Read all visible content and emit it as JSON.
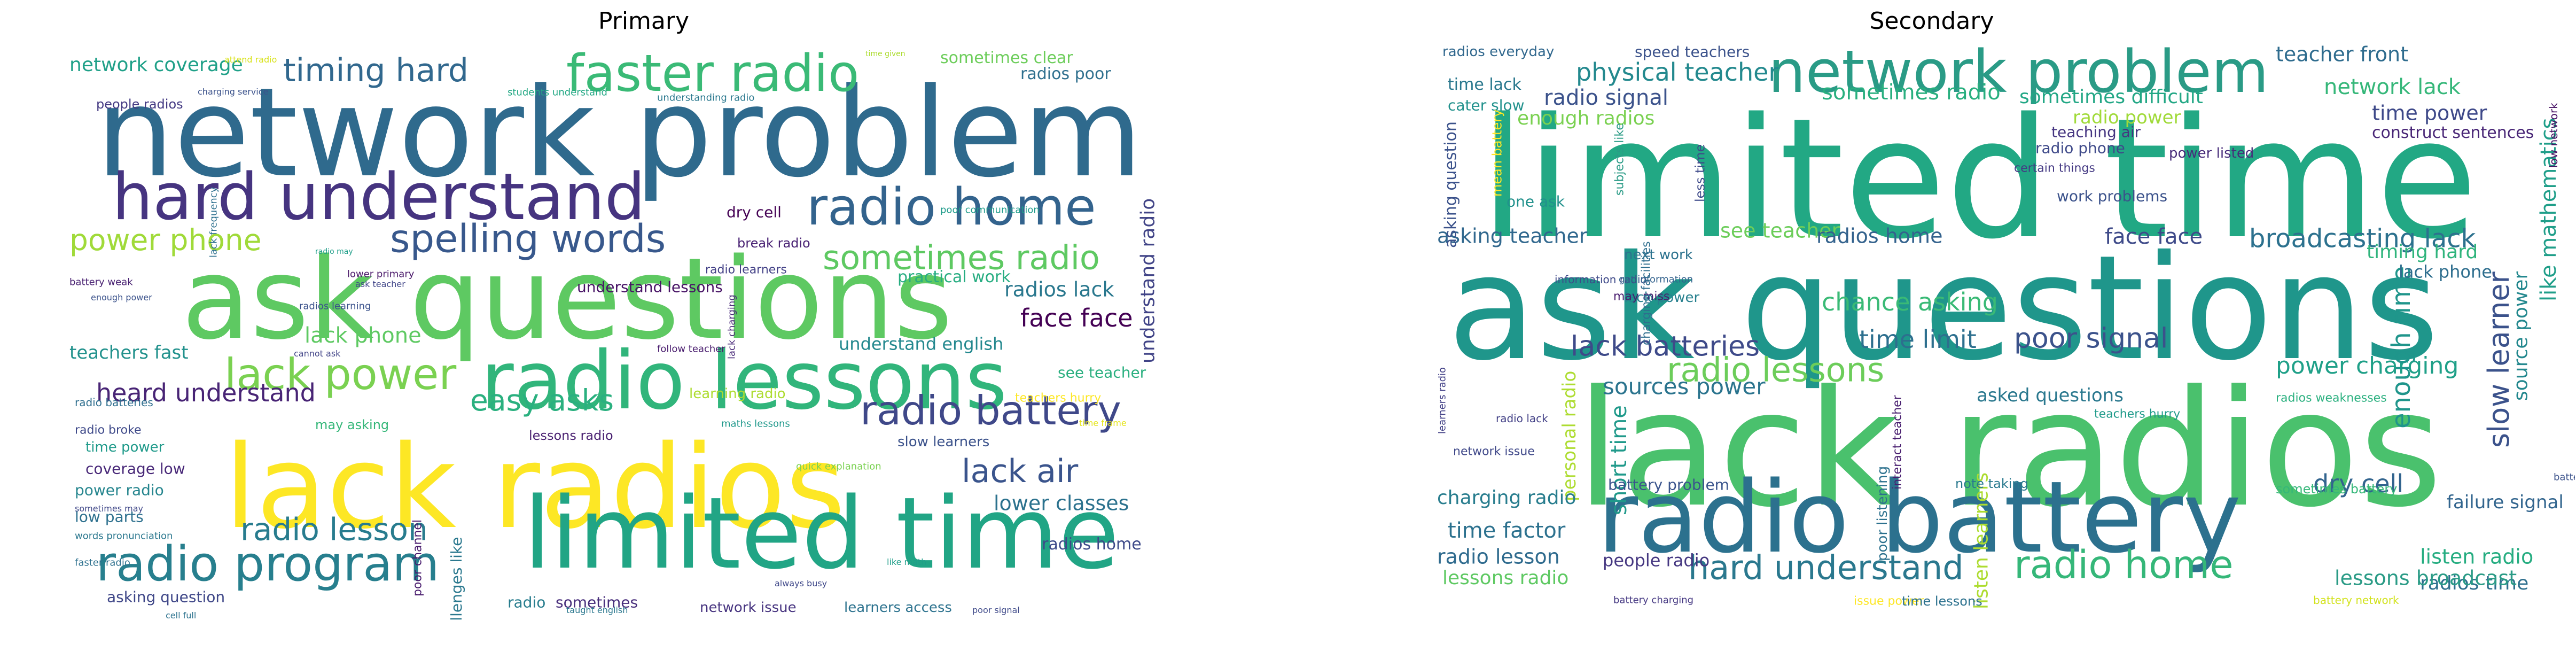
{
  "panels": [
    {
      "title": "Primary",
      "words": [
        {
          "text": "network problem",
          "color": "#2f6a8d"
        },
        {
          "text": "ask questions",
          "color": "#5ec962"
        },
        {
          "text": "lack radios",
          "color": "#fde725"
        },
        {
          "text": "limited time",
          "color": "#21a585"
        },
        {
          "text": "hard understand",
          "color": "#463480"
        },
        {
          "text": "radio lessons",
          "color": "#31b57b"
        },
        {
          "text": "radio program",
          "color": "#277f8e"
        },
        {
          "text": "faster radio",
          "color": "#3aba76"
        },
        {
          "text": "radio home",
          "color": "#33638d"
        },
        {
          "text": "radio battery",
          "color": "#3f4889"
        },
        {
          "text": "spelling words",
          "color": "#38588c"
        },
        {
          "text": "lack power",
          "color": "#7ad151"
        },
        {
          "text": "sometimes radio",
          "color": "#5ec962"
        },
        {
          "text": "timing hard",
          "color": "#31688e"
        },
        {
          "text": "power phone",
          "color": "#a0da39"
        },
        {
          "text": "easy asks",
          "color": "#2ab07f"
        },
        {
          "text": "lack air",
          "color": "#3a548c"
        },
        {
          "text": "radio lesson",
          "color": "#287c8e"
        },
        {
          "text": "heard understand",
          "color": "#482475"
        },
        {
          "text": "lack phone",
          "color": "#5ec962"
        },
        {
          "text": "face face",
          "color": "#440154"
        },
        {
          "text": "lower classes",
          "color": "#2c728e"
        },
        {
          "text": "radios lack",
          "color": "#2a788e"
        },
        {
          "text": "understand radio",
          "color": "#414487"
        },
        {
          "text": "network coverage",
          "color": "#1fa088"
        },
        {
          "text": "sometimes clear",
          "color": "#6ccd5a"
        },
        {
          "text": "radios poor",
          "color": "#2e6f8e"
        },
        {
          "text": "teachers fast",
          "color": "#21918c"
        },
        {
          "text": "radios home",
          "color": "#3e4a89"
        },
        {
          "text": "coverage low",
          "color": "#482878"
        },
        {
          "text": "power radio",
          "color": "#25858e"
        },
        {
          "text": "low parts",
          "color": "#2d708e"
        },
        {
          "text": "time power",
          "color": "#1f9a8a"
        },
        {
          "text": "understand english",
          "color": "#23888e"
        },
        {
          "text": "practical work",
          "color": "#27ad81"
        },
        {
          "text": "understand lessons",
          "color": "#471365"
        },
        {
          "text": "break radio",
          "color": "#482173"
        },
        {
          "text": "learning radio",
          "color": "#addc30"
        },
        {
          "text": "may asking",
          "color": "#35b779"
        },
        {
          "text": "see teacher",
          "color": "#29af7f"
        },
        {
          "text": "slow learners",
          "color": "#3b528b"
        },
        {
          "text": "lessons radio",
          "color": "#481f70"
        },
        {
          "text": "people radios",
          "color": "#443a83"
        },
        {
          "text": "asking question",
          "color": "#3f4788"
        },
        {
          "text": "network issue",
          "color": "#46337f"
        },
        {
          "text": "learners access",
          "color": "#2c728e"
        },
        {
          "text": "radio",
          "color": "#287d8e"
        },
        {
          "text": "sometimes",
          "color": "#472d7b"
        },
        {
          "text": "dry cell",
          "color": "#440154"
        },
        {
          "text": "radio learners",
          "color": "#424086"
        },
        {
          "text": "radios learning",
          "color": "#3b528b"
        },
        {
          "text": "lesson hard",
          "color": "#5ec962"
        },
        {
          "text": "challenges like",
          "color": "#2a788e"
        },
        {
          "text": "poor channel",
          "color": "#481b6d"
        },
        {
          "text": "radio broke",
          "color": "#3e4989"
        },
        {
          "text": "radio batteries",
          "color": "#2e6e8e"
        },
        {
          "text": "battery weak",
          "color": "#482071"
        },
        {
          "text": "enough power",
          "color": "#3b528b"
        },
        {
          "text": "follow teacher",
          "color": "#481b6d"
        },
        {
          "text": "cannot ask",
          "color": "#414487"
        },
        {
          "text": "maths lessons",
          "color": "#1f988b"
        },
        {
          "text": "lack charging",
          "color": "#482878"
        },
        {
          "text": "quick explanation",
          "color": "#7ad151"
        },
        {
          "text": "poor communication",
          "color": "#1e9b8a"
        },
        {
          "text": "understanding radio",
          "color": "#2a788e"
        },
        {
          "text": "lower primary",
          "color": "#481668"
        },
        {
          "text": "ask teacher",
          "color": "#404588"
        },
        {
          "text": "radio may",
          "color": "#1f9e89"
        },
        {
          "text": "lack frequency",
          "color": "#2d708e"
        },
        {
          "text": "charging service",
          "color": "#3b528b"
        },
        {
          "text": "attend radio",
          "color": "#d8e219"
        },
        {
          "text": "time given",
          "color": "#addc30"
        },
        {
          "text": "students understand",
          "color": "#22a884"
        },
        {
          "text": "teachers hurry",
          "color": "#fde725"
        },
        {
          "text": "time frame",
          "color": "#e5e419"
        },
        {
          "text": "always busy",
          "color": "#3f4889"
        },
        {
          "text": "like math",
          "color": "#1f9e89"
        },
        {
          "text": "taught english",
          "color": "#2a778e"
        },
        {
          "text": "poor signal",
          "color": "#3e4989"
        },
        {
          "text": "cell full",
          "color": "#2c728e"
        },
        {
          "text": "words pronunciation",
          "color": "#2a778e"
        },
        {
          "text": "faster radio",
          "color": "#2d708e"
        },
        {
          "text": "sometimes may",
          "color": "#3f4788"
        }
      ]
    },
    {
      "title": "Secondary",
      "words": [
        {
          "text": "limited time",
          "color": "#22a884"
        },
        {
          "text": "ask questions",
          "color": "#1f968b"
        },
        {
          "text": "lack radios",
          "color": "#4ac16d"
        },
        {
          "text": "radio battery",
          "color": "#2c718e"
        },
        {
          "text": "network problem",
          "color": "#2a9b86"
        },
        {
          "text": "hard understand",
          "color": "#2a788e"
        },
        {
          "text": "radio home",
          "color": "#35b779"
        },
        {
          "text": "radio lessons",
          "color": "#6ccd5a"
        },
        {
          "text": "poor signal",
          "color": "#3b528b"
        },
        {
          "text": "lack batteries",
          "color": "#3e4a89"
        },
        {
          "text": "broadcasting lack",
          "color": "#2c718e"
        },
        {
          "text": "time limit",
          "color": "#2d6f8e"
        },
        {
          "text": "chance asking",
          "color": "#3aba76"
        },
        {
          "text": "power charging",
          "color": "#1fa088"
        },
        {
          "text": "sources power",
          "color": "#2b748e"
        },
        {
          "text": "dry cell",
          "color": "#32648e"
        },
        {
          "text": "slow learner",
          "color": "#3b528b"
        },
        {
          "text": "enough time",
          "color": "#1f958b"
        },
        {
          "text": "physical teacher",
          "color": "#23898e"
        },
        {
          "text": "sometimes radio",
          "color": "#29af7f"
        },
        {
          "text": "sometimes difficult",
          "color": "#22a785"
        },
        {
          "text": "radio signal",
          "color": "#3b528b"
        },
        {
          "text": "enough radios",
          "color": "#7ad151"
        },
        {
          "text": "radio power",
          "color": "#a0da39"
        },
        {
          "text": "network lack",
          "color": "#35b779"
        },
        {
          "text": "time power",
          "color": "#3e4989"
        },
        {
          "text": "teacher front",
          "color": "#2f6c8e"
        },
        {
          "text": "asking teacher",
          "color": "#31688e"
        },
        {
          "text": "see teacher",
          "color": "#6ccd5a"
        },
        {
          "text": "radios home",
          "color": "#33628d"
        },
        {
          "text": "face face",
          "color": "#3e4a89"
        },
        {
          "text": "timing hard",
          "color": "#2fb47c"
        },
        {
          "text": "lack phone",
          "color": "#2e6e8e"
        },
        {
          "text": "like mathematics",
          "color": "#1f9e89"
        },
        {
          "text": "source power",
          "color": "#23888e"
        },
        {
          "text": "short time",
          "color": "#1f998a"
        },
        {
          "text": "personal radio",
          "color": "#addc30"
        },
        {
          "text": "charging radio",
          "color": "#287d8e"
        },
        {
          "text": "time factor",
          "color": "#2c718e"
        },
        {
          "text": "radio lesson",
          "color": "#2f6b8e"
        },
        {
          "text": "lessons radio",
          "color": "#5ec962"
        },
        {
          "text": "people radio",
          "color": "#453781"
        },
        {
          "text": "listen radio",
          "color": "#26ad81"
        },
        {
          "text": "radios time",
          "color": "#2e6f8e"
        },
        {
          "text": "failure signal",
          "color": "#32658e"
        },
        {
          "text": "lessons broadcast",
          "color": "#2a9b86"
        },
        {
          "text": "listen learners",
          "color": "#addc30"
        },
        {
          "text": "asked questions",
          "color": "#2a788e"
        },
        {
          "text": "radio phone",
          "color": "#3e4989"
        },
        {
          "text": "teaching air",
          "color": "#453581"
        },
        {
          "text": "construct sentences",
          "color": "#482576"
        },
        {
          "text": "radios everyday",
          "color": "#31688e"
        },
        {
          "text": "speed teachers",
          "color": "#3b528b"
        },
        {
          "text": "time lack",
          "color": "#2a788e"
        },
        {
          "text": "cater slow",
          "color": "#21918c"
        },
        {
          "text": "asking question",
          "color": "#3b528b"
        },
        {
          "text": "one ask",
          "color": "#21918c"
        },
        {
          "text": "next work",
          "color": "#2c728e"
        },
        {
          "text": "lack power",
          "color": "#27808e"
        },
        {
          "text": "work problems",
          "color": "#3b528b"
        },
        {
          "text": "power listed",
          "color": "#472c7a"
        },
        {
          "text": "network issue",
          "color": "#3f4889"
        },
        {
          "text": "battery problem",
          "color": "#3a548c"
        },
        {
          "text": "note taking",
          "color": "#29798e"
        },
        {
          "text": "sometimes battery",
          "color": "#35b779"
        },
        {
          "text": "radios weaknesses",
          "color": "#2ab07f"
        },
        {
          "text": "teachers hurry",
          "color": "#1f9a8a"
        },
        {
          "text": "certain things",
          "color": "#443983"
        },
        {
          "text": "low network",
          "color": "#471164"
        },
        {
          "text": "battery charging",
          "color": "#453882"
        },
        {
          "text": "battery low",
          "color": "#3b528b"
        },
        {
          "text": "issue power",
          "color": "#fde725"
        },
        {
          "text": "time lessons",
          "color": "#2c718e"
        },
        {
          "text": "battery network",
          "color": "#d2e21b"
        },
        {
          "text": "interact teacher",
          "color": "#481e6f"
        },
        {
          "text": "less time",
          "color": "#3e4a89"
        },
        {
          "text": "information radio",
          "color": "#3e4989"
        },
        {
          "text": "radio lack",
          "color": "#424086"
        },
        {
          "text": "may miss",
          "color": "#481c6e"
        },
        {
          "text": "get information",
          "color": "#33628d"
        },
        {
          "text": "charging facilities",
          "color": "#2e6e8e"
        },
        {
          "text": "subjects like",
          "color": "#2a9b86"
        },
        {
          "text": "mean battery",
          "color": "#fde725"
        },
        {
          "text": "poor listening",
          "color": "#2c718e"
        },
        {
          "text": "learners radio",
          "color": "#424086"
        }
      ]
    }
  ]
}
